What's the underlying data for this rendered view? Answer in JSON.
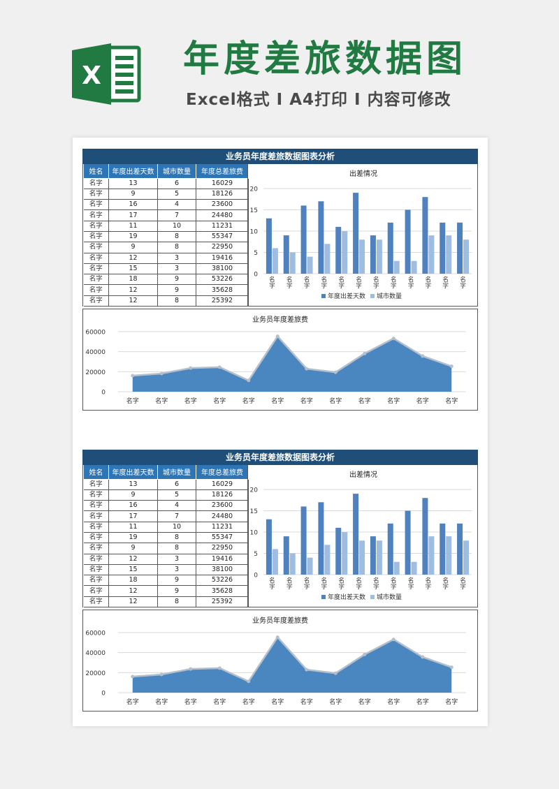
{
  "header": {
    "title": "年度差旅数据图",
    "subtitle": "Excel格式 I A4打印 I 内容可修改",
    "logo_letter": "X",
    "brand_color": "#217a42"
  },
  "report": {
    "title": "业务员年度差旅数据图表分析",
    "columns": [
      "姓名",
      "年度出差天数",
      "城市数量",
      "年度总差旅费"
    ],
    "rows": [
      [
        "名字",
        "13",
        "6",
        "16029"
      ],
      [
        "名字",
        "9",
        "5",
        "18126"
      ],
      [
        "名字",
        "16",
        "4",
        "23600"
      ],
      [
        "名字",
        "17",
        "7",
        "24480"
      ],
      [
        "名字",
        "11",
        "10",
        "11231"
      ],
      [
        "名字",
        "19",
        "8",
        "55347"
      ],
      [
        "名字",
        "9",
        "8",
        "22950"
      ],
      [
        "名字",
        "12",
        "3",
        "19416"
      ],
      [
        "名字",
        "15",
        "3",
        "38100"
      ],
      [
        "名字",
        "18",
        "9",
        "53226"
      ],
      [
        "名字",
        "12",
        "9",
        "35628"
      ],
      [
        "名字",
        "12",
        "8",
        "25392"
      ]
    ],
    "header_color": "#1f4e79",
    "column_header_color": "#2e75b6"
  },
  "chart_data": [
    {
      "type": "bar",
      "title": "出差情况",
      "categories": [
        "名字",
        "名字",
        "名字",
        "名字",
        "名字",
        "名字",
        "名字",
        "名字",
        "名字",
        "名字",
        "名字",
        "名字"
      ],
      "series": [
        {
          "name": "年度出差天数",
          "values": [
            13,
            9,
            16,
            17,
            11,
            19,
            9,
            12,
            15,
            18,
            12,
            12
          ],
          "color": "#4e81bd"
        },
        {
          "name": "城市数量",
          "values": [
            6,
            5,
            4,
            7,
            10,
            8,
            8,
            3,
            3,
            9,
            9,
            8
          ],
          "color": "#9fbde0"
        }
      ],
      "ylim": [
        0,
        20
      ],
      "yticks": [
        0,
        5,
        10,
        15,
        20
      ],
      "grid": true,
      "legend": "bottom"
    },
    {
      "type": "area",
      "title": "业务员年度差旅费",
      "categories": [
        "名字",
        "名字",
        "名字",
        "名字",
        "名字",
        "名字",
        "名字",
        "名字",
        "名字",
        "名字",
        "名字",
        "名字"
      ],
      "series": [
        {
          "values": [
            16029,
            18126,
            23600,
            24480,
            11231,
            55347,
            22950,
            19416,
            38100,
            53226,
            35628,
            25392
          ],
          "color": "#4a86c0"
        }
      ],
      "ylim": [
        0,
        60000
      ],
      "yticks": [
        0,
        20000,
        40000,
        60000
      ],
      "grid": true,
      "legend": "none"
    }
  ]
}
